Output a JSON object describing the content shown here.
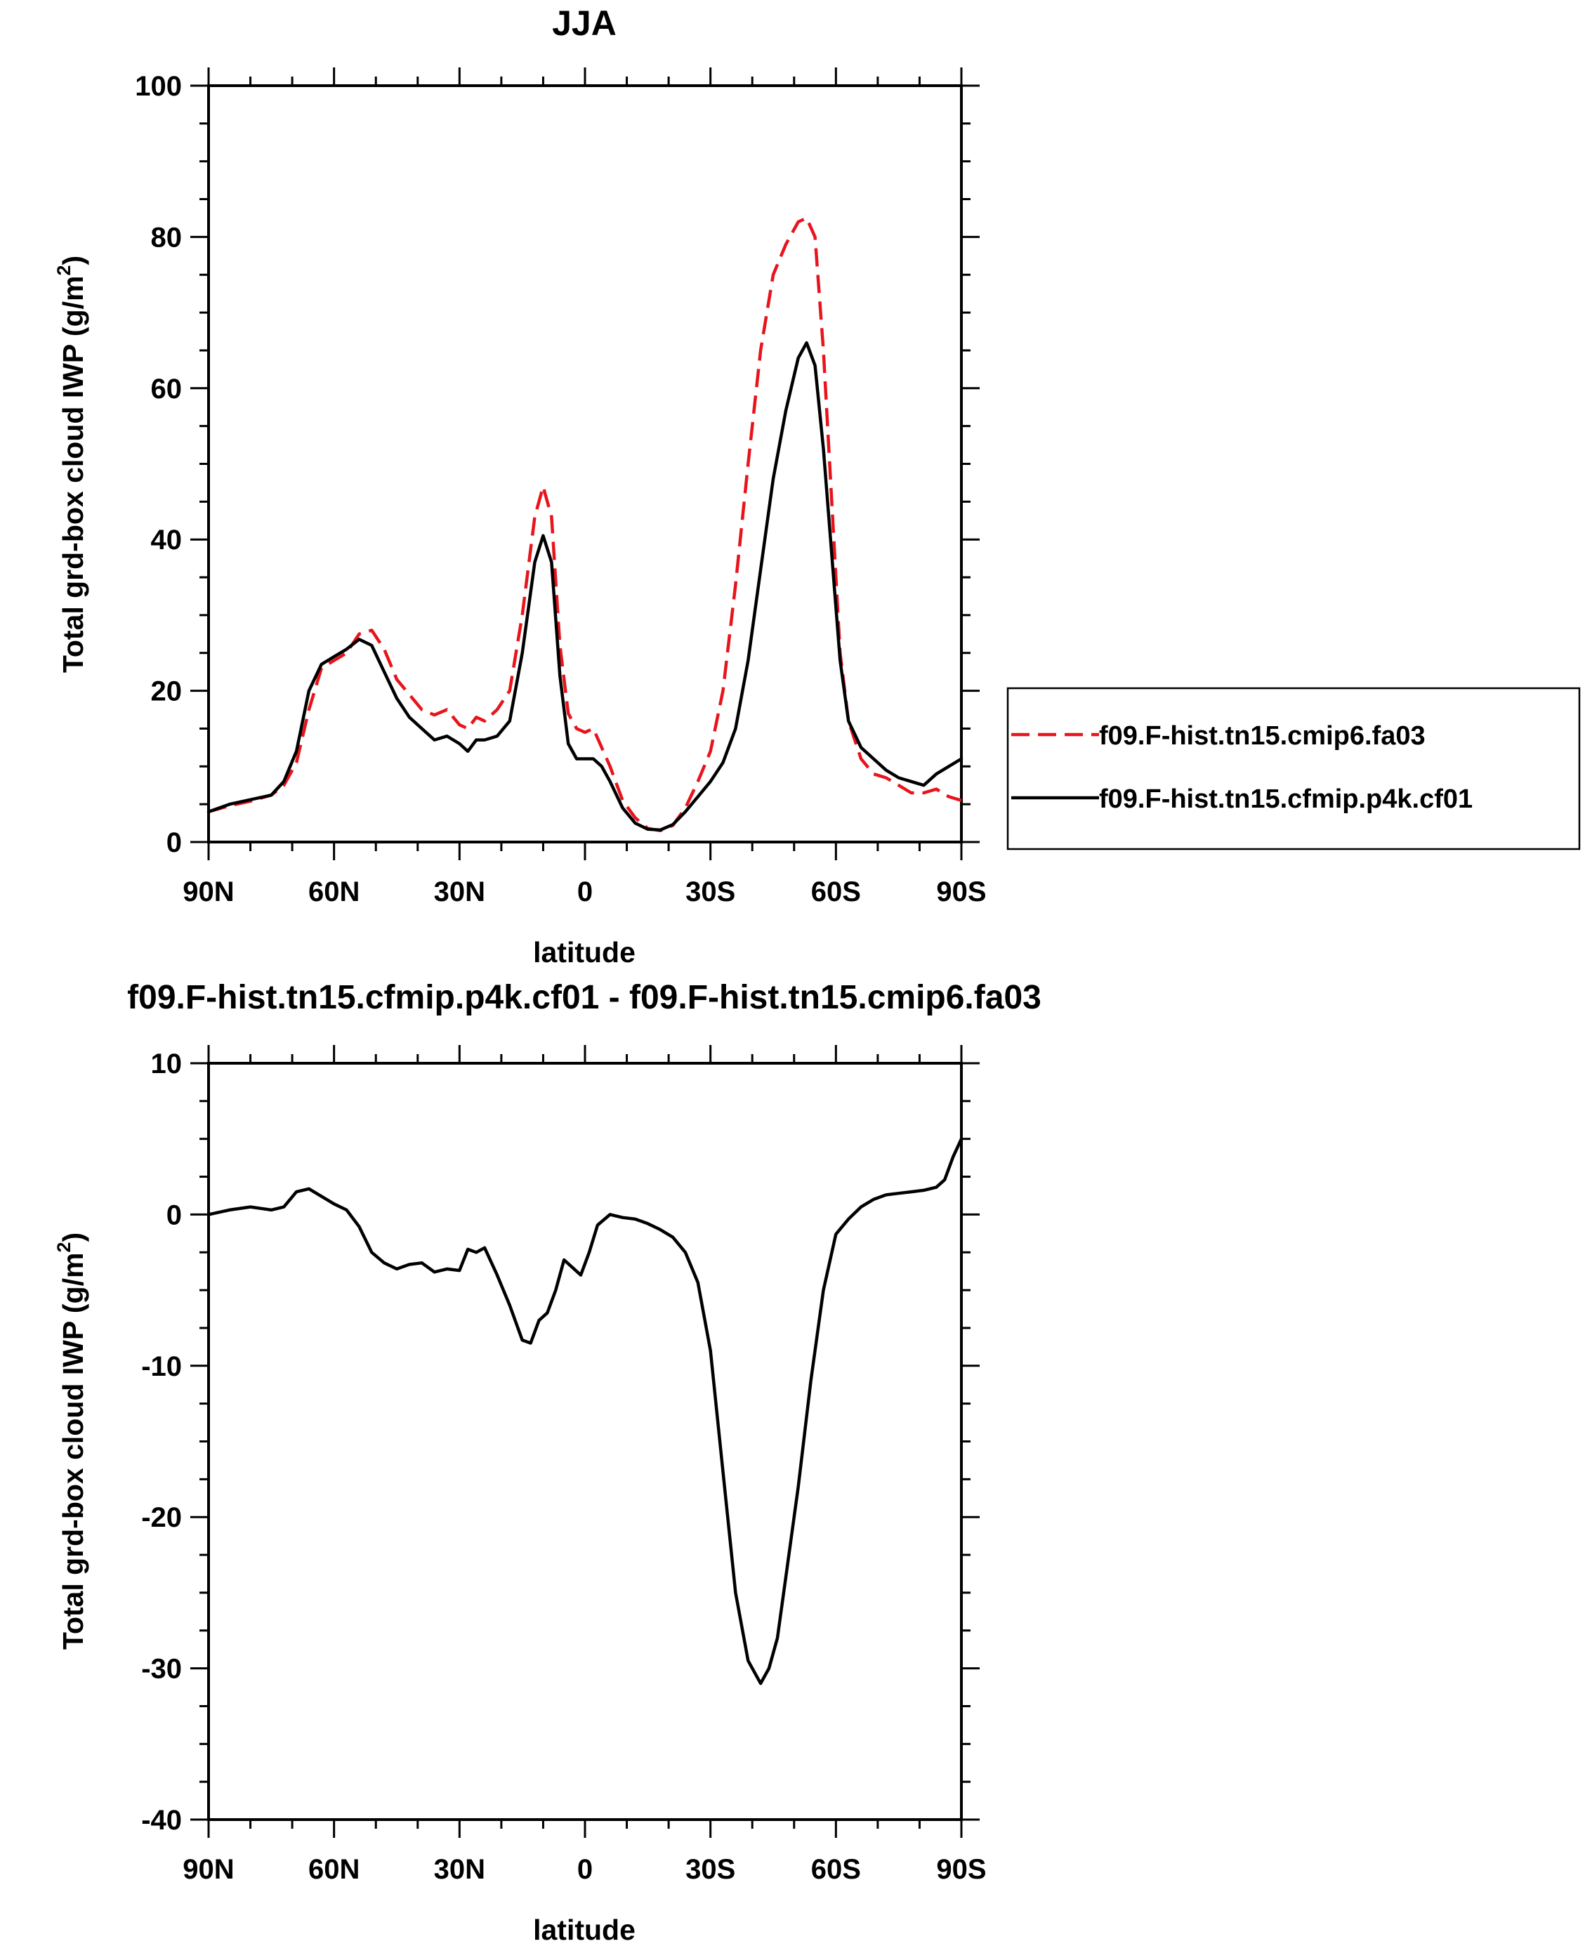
{
  "chart_data": [
    {
      "type": "line",
      "title": "JJA",
      "xlabel": "latitude",
      "ylabel": "Total grd-box cloud IWP (g/m",
      "ylabel_sup": "2",
      "ylabel_close": ")",
      "xlim": [
        90,
        -90
      ],
      "ylim": [
        0,
        100
      ],
      "xticks": [
        90,
        60,
        30,
        0,
        -30,
        -60,
        -90
      ],
      "xtick_labels": [
        "90N",
        "60N",
        "30N",
        "0",
        "30S",
        "60S",
        "90S"
      ],
      "yticks": [
        0,
        20,
        40,
        60,
        80,
        100
      ],
      "ytick_labels": [
        "0",
        "20",
        "40",
        "60",
        "80",
        "100"
      ],
      "legend_position": "right",
      "series": [
        {
          "name": "f09.F-hist.tn15.cmip6.fa03",
          "color": "#e8141c",
          "style": "dashed",
          "x": [
            90,
            85,
            80,
            75,
            72,
            69,
            66,
            63,
            60,
            57,
            54,
            51,
            48,
            45,
            42,
            39,
            36,
            33,
            30,
            28,
            26,
            24,
            21,
            18,
            15,
            12,
            10,
            8,
            6,
            4,
            2,
            0,
            -2,
            -4,
            -6,
            -9,
            -12,
            -15,
            -18,
            -21,
            -24,
            -27,
            -30,
            -33,
            -36,
            -39,
            -42,
            -45,
            -48,
            -51,
            -53,
            -55,
            -57,
            -59,
            -61,
            -63,
            -66,
            -69,
            -72,
            -75,
            -78,
            -81,
            -84,
            -87,
            -90
          ],
          "y": [
            4,
            4.8,
            5.4,
            6.2,
            7.5,
            10.5,
            17.5,
            23,
            24,
            25,
            27.5,
            28,
            25.5,
            21.5,
            19.5,
            17.5,
            16.8,
            17.5,
            15.5,
            15,
            16.5,
            16,
            17.5,
            20,
            30,
            43,
            47,
            43,
            26,
            17,
            15,
            14.5,
            15,
            12.5,
            10,
            5.5,
            3.2,
            1.8,
            1.5,
            2.2,
            4.5,
            8,
            12,
            20,
            34,
            50,
            65,
            75,
            79,
            82,
            82.5,
            80,
            65,
            45,
            25,
            16,
            11,
            9,
            8.5,
            7.5,
            6.5,
            6.5,
            7,
            6,
            5.5
          ]
        },
        {
          "name": "f09.F-hist.tn15.cfmip.p4k.cf01",
          "color": "#000000",
          "style": "solid",
          "x": [
            90,
            85,
            80,
            75,
            72,
            69,
            66,
            63,
            60,
            57,
            54,
            51,
            48,
            45,
            42,
            39,
            36,
            33,
            30,
            28,
            26,
            24,
            21,
            18,
            15,
            12,
            10,
            8,
            6,
            4,
            2,
            0,
            -2,
            -4,
            -6,
            -9,
            -12,
            -15,
            -18,
            -21,
            -24,
            -27,
            -30,
            -33,
            -36,
            -39,
            -42,
            -45,
            -48,
            -51,
            -53,
            -55,
            -57,
            -59,
            -61,
            -63,
            -66,
            -69,
            -72,
            -75,
            -78,
            -81,
            -84,
            -87,
            -90
          ],
          "y": [
            4,
            5,
            5.6,
            6.2,
            8,
            12,
            20,
            23.5,
            24.5,
            25.5,
            26.8,
            26,
            22.5,
            19,
            16.5,
            15,
            13.5,
            14,
            13,
            12,
            13.5,
            13.5,
            14,
            16,
            25,
            37,
            40.5,
            37,
            22,
            13,
            11,
            11,
            11,
            10,
            8,
            4.5,
            2.5,
            1.7,
            1.6,
            2.3,
            4,
            6,
            8,
            10.5,
            15,
            24,
            36,
            48,
            57,
            64,
            66,
            63,
            52,
            38,
            24,
            16,
            12.5,
            11,
            9.5,
            8.5,
            8,
            7.5,
            9,
            10,
            11
          ]
        }
      ]
    },
    {
      "type": "line",
      "title": "f09.F-hist.tn15.cfmip.p4k.cf01 - f09.F-hist.tn15.cmip6.fa03",
      "xlabel": "latitude",
      "ylabel": "Total grd-box cloud IWP (g/m",
      "ylabel_sup": "2",
      "ylabel_close": ")",
      "xlim": [
        90,
        -90
      ],
      "ylim": [
        -40,
        10
      ],
      "xticks": [
        90,
        60,
        30,
        0,
        -30,
        -60,
        -90
      ],
      "xtick_labels": [
        "90N",
        "60N",
        "30N",
        "0",
        "30S",
        "60S",
        "90S"
      ],
      "yticks": [
        -40,
        -30,
        -20,
        -10,
        0,
        10
      ],
      "ytick_labels": [
        "-40",
        "-30",
        "-20",
        "-10",
        "0",
        "10"
      ],
      "series": [
        {
          "color": "#000000",
          "style": "solid",
          "x": [
            90,
            85,
            80,
            75,
            72,
            69,
            66,
            63,
            60,
            57,
            54,
            51,
            48,
            45,
            42,
            39,
            36,
            33,
            30,
            28,
            26,
            24,
            21,
            18,
            15,
            13,
            11,
            9,
            7,
            5,
            3,
            1,
            -1,
            -3,
            -6,
            -9,
            -12,
            -15,
            -18,
            -21,
            -24,
            -27,
            -30,
            -33,
            -36,
            -39,
            -42,
            -44,
            -46,
            -48,
            -51,
            -54,
            -57,
            -60,
            -63,
            -66,
            -69,
            -72,
            -75,
            -78,
            -81,
            -84,
            -86,
            -88,
            -90
          ],
          "y": [
            0,
            0.3,
            0.5,
            0.3,
            0.5,
            1.5,
            1.7,
            1.2,
            0.7,
            0.3,
            -0.8,
            -2.5,
            -3.2,
            -3.6,
            -3.3,
            -3.2,
            -3.8,
            -3.6,
            -3.7,
            -2.3,
            -2.5,
            -2.2,
            -4,
            -6,
            -8.3,
            -8.5,
            -7,
            -6.5,
            -5,
            -3,
            -3.5,
            -4,
            -2.5,
            -0.7,
            0,
            -0.2,
            -0.3,
            -0.6,
            -1,
            -1.5,
            -2.5,
            -4.5,
            -9,
            -17,
            -25,
            -29.5,
            -31,
            -30,
            -28,
            -24,
            -18,
            -11,
            -5,
            -1.3,
            -0.3,
            0.5,
            1,
            1.3,
            1.4,
            1.5,
            1.6,
            1.8,
            2.3,
            3.8,
            5
          ]
        }
      ]
    }
  ]
}
